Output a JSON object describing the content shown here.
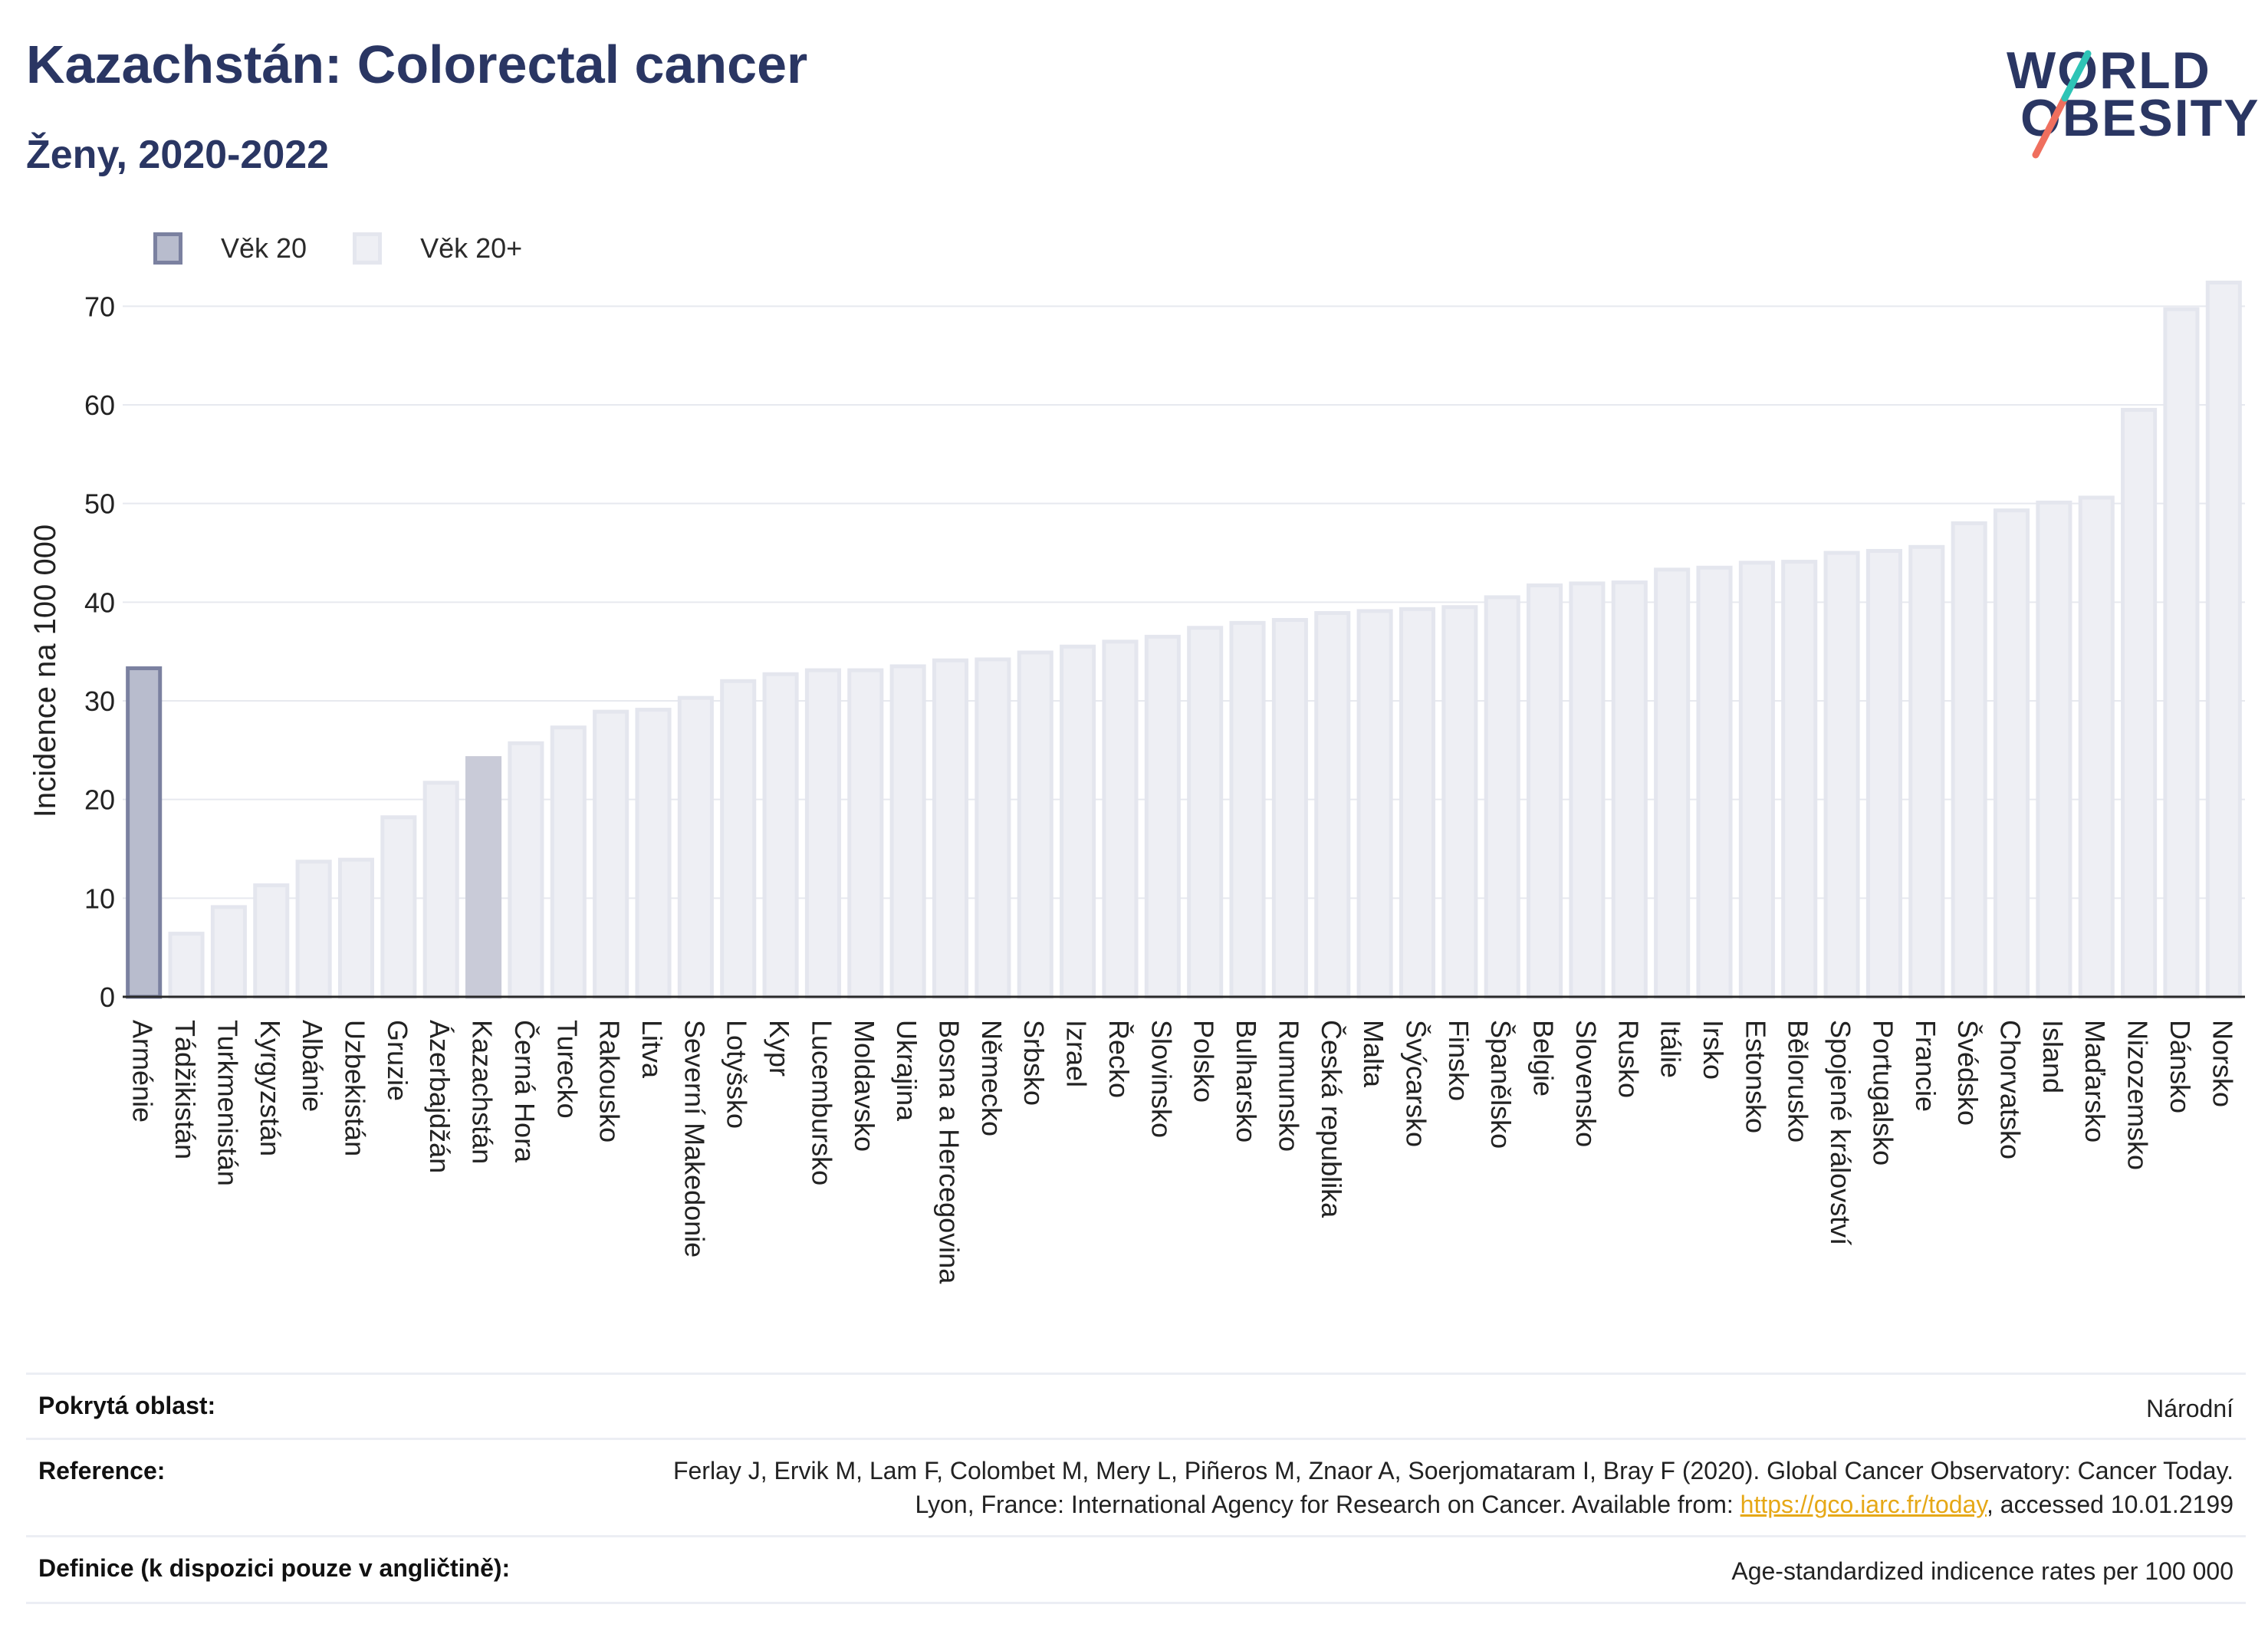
{
  "header": {
    "title": "Kazachstán: Colorectal cancer",
    "subtitle": "Ženy, 2020-2022"
  },
  "logo": {
    "line1": "WORLD",
    "line2": "OBESITY"
  },
  "colors": {
    "highlight_fill": "#b8bccd",
    "highlight_stroke": "#7b81a0",
    "bar_fill": "#eeeff4",
    "bar_stroke": "#e4e6ee",
    "kazakhstan_fill": "#c9cbd8",
    "grid": "#e7e9ef",
    "axis": "#2a2a2a",
    "logo_teal": "#2ec4b6",
    "logo_coral": "#ef6f5e",
    "link": "#e6a817"
  },
  "chart_data": {
    "type": "bar",
    "ylabel": "Incidence na 100 000",
    "ylim": [
      0,
      75
    ],
    "yticks": [
      0,
      10,
      20,
      30,
      40,
      50,
      60,
      70
    ],
    "grid": true,
    "legend": [
      {
        "name": "Věk 20",
        "style": "highlight"
      },
      {
        "name": "Věk 20+",
        "style": "normal"
      }
    ],
    "categories": [
      "Arménie",
      "Tádžikistán",
      "Turkmenistán",
      "Kyrgyzstán",
      "Albánie",
      "Uzbekistán",
      "Gruzie",
      "Ázerbajdžán",
      "Kazachstán",
      "Černá Hora",
      "Turecko",
      "Rakousko",
      "Litva",
      "Severní Makedonie",
      "Lotyšsko",
      "Kypr",
      "Lucembursko",
      "Moldavsko",
      "Ukrajina",
      "Bosna a Hercegovina",
      "Německo",
      "Srbsko",
      "Izrael",
      "Řecko",
      "Slovinsko",
      "Polsko",
      "Bulharsko",
      "Rumunsko",
      "Česká republika",
      "Malta",
      "Švýcarsko",
      "Finsko",
      "Španělsko",
      "Belgie",
      "Slovensko",
      "Rusko",
      "Itálie",
      "Irsko",
      "Estonsko",
      "Bělorusko",
      "Spojené království",
      "Portugalsko",
      "Francie",
      "Švédsko",
      "Chorvatsko",
      "Island",
      "Maďarsko",
      "Nizozemsko",
      "Dánsko",
      "Norsko"
    ],
    "values": [
      33.3,
      6.4,
      9.1,
      11.3,
      13.7,
      13.9,
      18.2,
      21.7,
      24.2,
      25.7,
      27.3,
      28.9,
      29.1,
      30.3,
      32.0,
      32.7,
      33.1,
      33.1,
      33.5,
      34.1,
      34.2,
      34.9,
      35.5,
      36.0,
      36.5,
      37.4,
      37.9,
      38.2,
      38.9,
      39.1,
      39.3,
      39.5,
      40.5,
      41.7,
      41.9,
      42.0,
      43.3,
      43.5,
      44.0,
      44.1,
      45.0,
      45.2,
      45.6,
      48.0,
      49.3,
      50.1,
      50.6,
      59.5,
      69.7,
      72.4
    ],
    "highlight_index": 0,
    "focus_index": 8
  },
  "footer": {
    "coverage_label": "Pokrytá oblast:",
    "coverage_value": "Národní",
    "reference_label": "Reference:",
    "reference_text": "Ferlay J, Ervik M, Lam F, Colombet M, Mery L, Piñeros M, Znaor A, Soerjomataram I, Bray F (2020). Global Cancer Observatory: Cancer Today. Lyon, France: International Agency for Research on Cancer. Available from: ",
    "reference_link": "https://gco.iarc.fr/today",
    "reference_suffix": ", accessed 10.01.2199",
    "definition_label": "Definice (k dispozici pouze v angličtině):",
    "definition_value": "Age-standardized indicence rates per 100 000"
  }
}
